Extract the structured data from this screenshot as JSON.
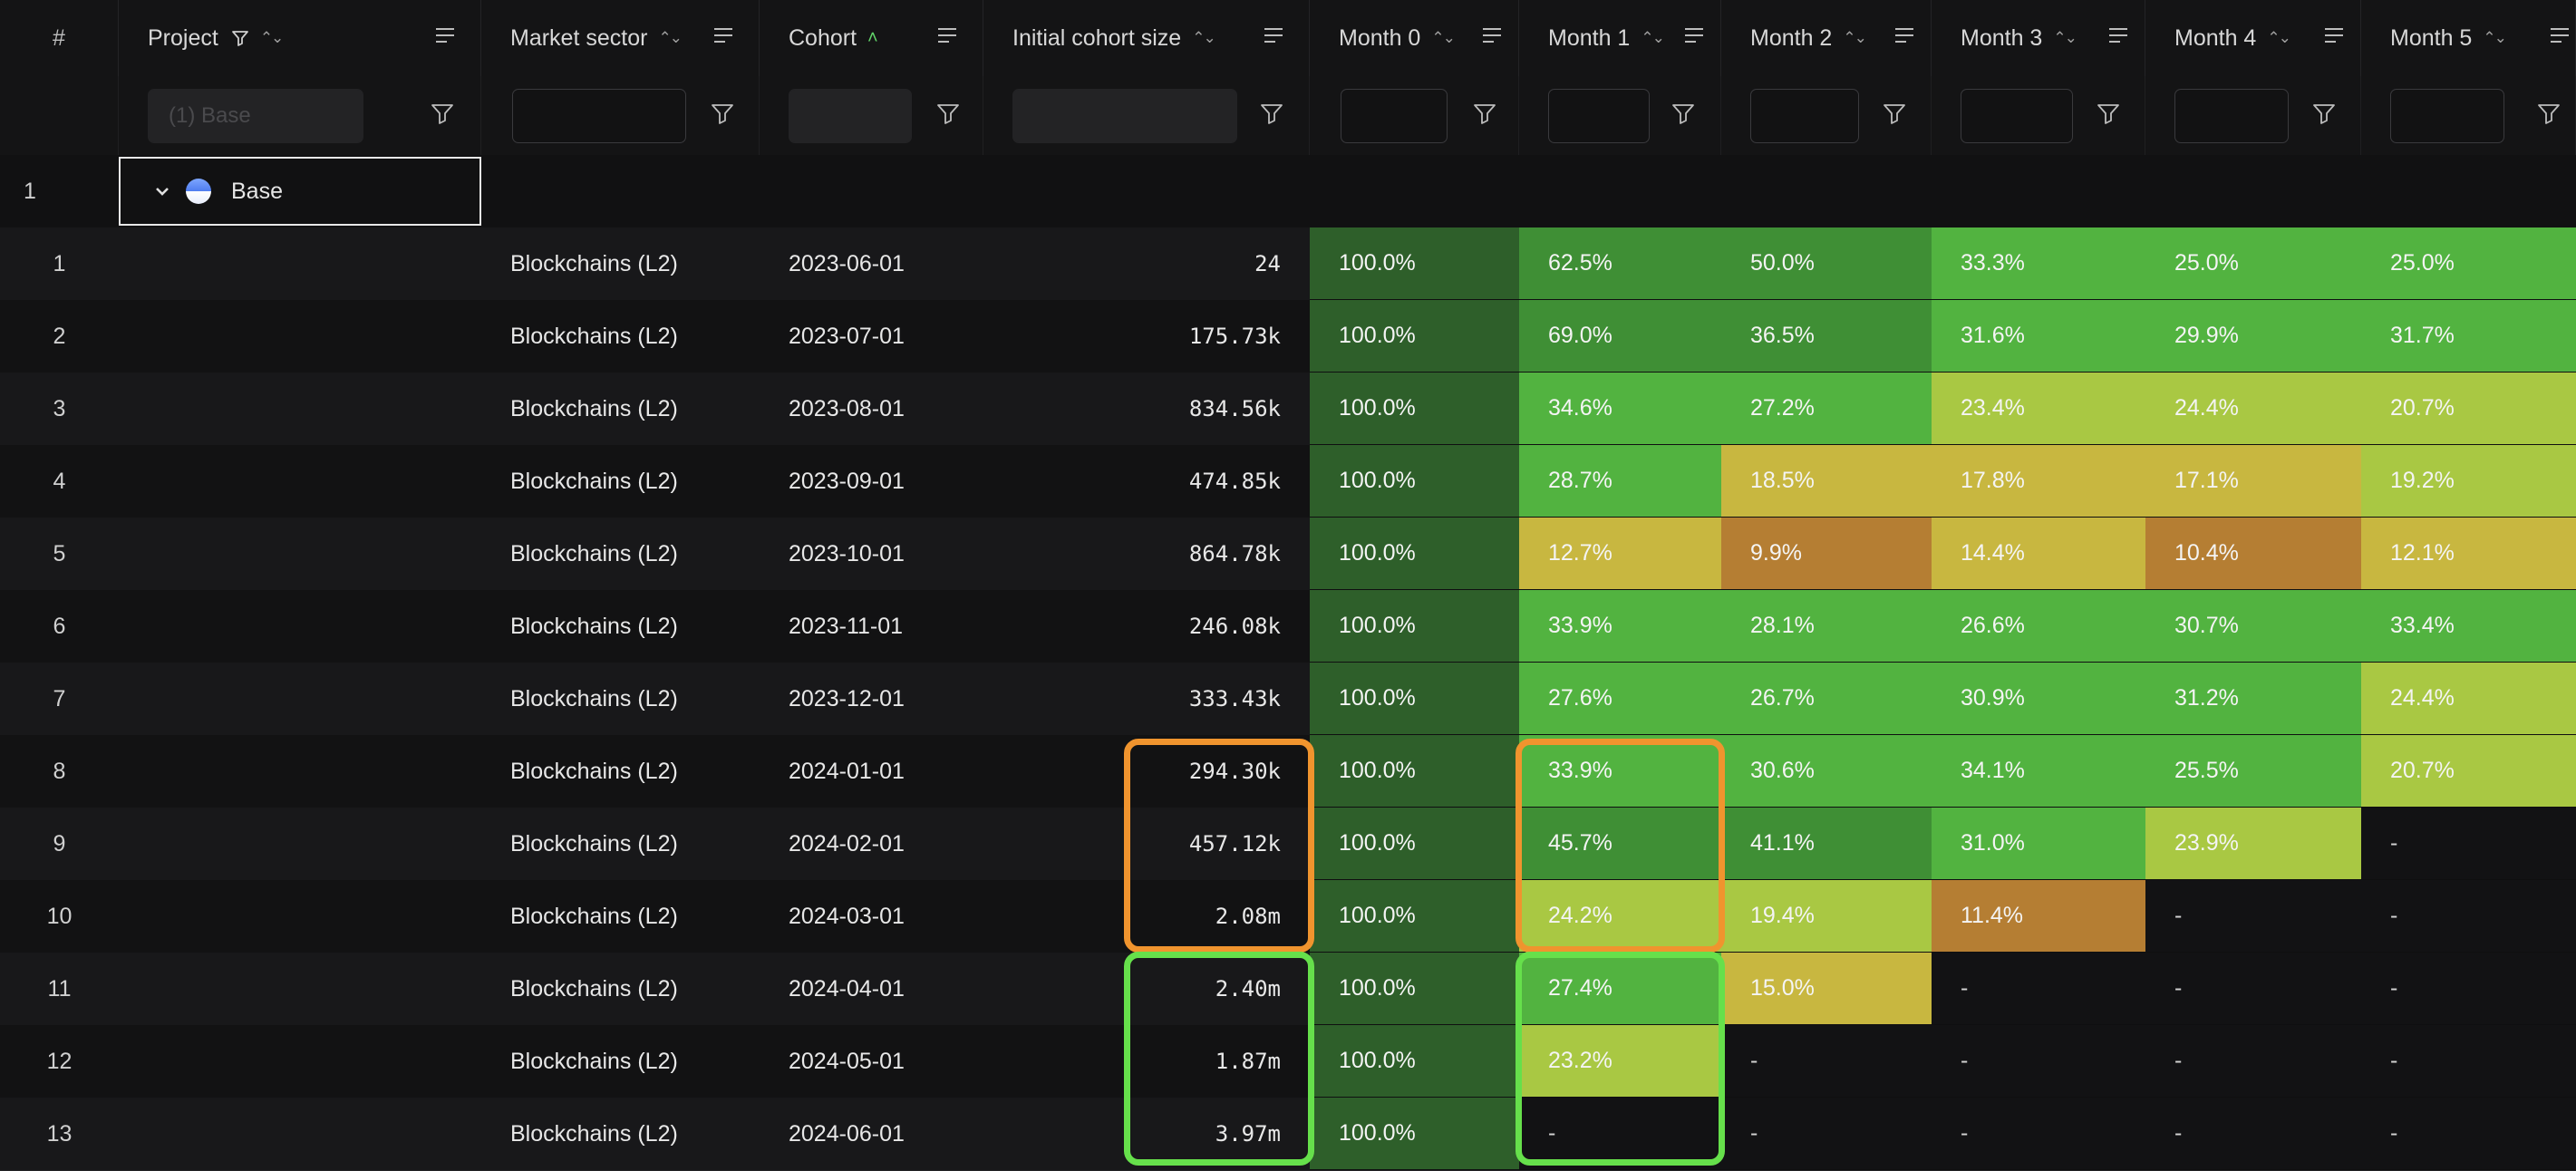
{
  "columns": {
    "index": "#",
    "project": "Project",
    "market_sector": "Market sector",
    "cohort": "Cohort",
    "initial_cohort_size": "Initial cohort size",
    "months": [
      "Month 0",
      "Month 1",
      "Month 2",
      "Month 3",
      "Month 4",
      "Month 5"
    ]
  },
  "filters": {
    "project_placeholder": "(1) Base"
  },
  "group": {
    "index": "1",
    "name": "Base"
  },
  "rows": [
    {
      "idx": "1",
      "sector": "Blockchains (L2)",
      "cohort": "2023-06-01",
      "size": "24",
      "months": [
        "100.0%",
        "62.5%",
        "50.0%",
        "33.3%",
        "25.0%",
        "25.0%"
      ]
    },
    {
      "idx": "2",
      "sector": "Blockchains (L2)",
      "cohort": "2023-07-01",
      "size": "175.73k",
      "months": [
        "100.0%",
        "69.0%",
        "36.5%",
        "31.6%",
        "29.9%",
        "31.7%"
      ]
    },
    {
      "idx": "3",
      "sector": "Blockchains (L2)",
      "cohort": "2023-08-01",
      "size": "834.56k",
      "months": [
        "100.0%",
        "34.6%",
        "27.2%",
        "23.4%",
        "24.4%",
        "20.7%"
      ]
    },
    {
      "idx": "4",
      "sector": "Blockchains (L2)",
      "cohort": "2023-09-01",
      "size": "474.85k",
      "months": [
        "100.0%",
        "28.7%",
        "18.5%",
        "17.8%",
        "17.1%",
        "19.2%"
      ]
    },
    {
      "idx": "5",
      "sector": "Blockchains (L2)",
      "cohort": "2023-10-01",
      "size": "864.78k",
      "months": [
        "100.0%",
        "12.7%",
        "9.9%",
        "14.4%",
        "10.4%",
        "12.1%"
      ]
    },
    {
      "idx": "6",
      "sector": "Blockchains (L2)",
      "cohort": "2023-11-01",
      "size": "246.08k",
      "months": [
        "100.0%",
        "33.9%",
        "28.1%",
        "26.6%",
        "30.7%",
        "33.4%"
      ]
    },
    {
      "idx": "7",
      "sector": "Blockchains (L2)",
      "cohort": "2023-12-01",
      "size": "333.43k",
      "months": [
        "100.0%",
        "27.6%",
        "26.7%",
        "30.9%",
        "31.2%",
        "24.4%"
      ]
    },
    {
      "idx": "8",
      "sector": "Blockchains (L2)",
      "cohort": "2024-01-01",
      "size": "294.30k",
      "months": [
        "100.0%",
        "33.9%",
        "30.6%",
        "34.1%",
        "25.5%",
        "20.7%"
      ]
    },
    {
      "idx": "9",
      "sector": "Blockchains (L2)",
      "cohort": "2024-02-01",
      "size": "457.12k",
      "months": [
        "100.0%",
        "45.7%",
        "41.1%",
        "31.0%",
        "23.9%",
        "-"
      ]
    },
    {
      "idx": "10",
      "sector": "Blockchains (L2)",
      "cohort": "2024-03-01",
      "size": "2.08m",
      "months": [
        "100.0%",
        "24.2%",
        "19.4%",
        "11.4%",
        "-",
        "-"
      ]
    },
    {
      "idx": "11",
      "sector": "Blockchains (L2)",
      "cohort": "2024-04-01",
      "size": "2.40m",
      "months": [
        "100.0%",
        "27.4%",
        "15.0%",
        "-",
        "-",
        "-"
      ]
    },
    {
      "idx": "12",
      "sector": "Blockchains (L2)",
      "cohort": "2024-05-01",
      "size": "1.87m",
      "months": [
        "100.0%",
        "23.2%",
        "-",
        "-",
        "-",
        "-"
      ]
    },
    {
      "idx": "13",
      "sector": "Blockchains (L2)",
      "cohort": "2024-06-01",
      "size": "3.97m",
      "months": [
        "100.0%",
        "-",
        "-",
        "-",
        "-",
        "-"
      ]
    }
  ],
  "colors": {
    "month0": "#2e5f2a",
    "scale_high": "#3f8f35",
    "scale_mid": "#52b340",
    "scale_low_green": "#a9c843",
    "scale_yellow": "#c8b740",
    "scale_low": "#b57e33",
    "empty": "#121214",
    "highlight_orange": "#f0942e",
    "highlight_green": "#66e04b"
  }
}
